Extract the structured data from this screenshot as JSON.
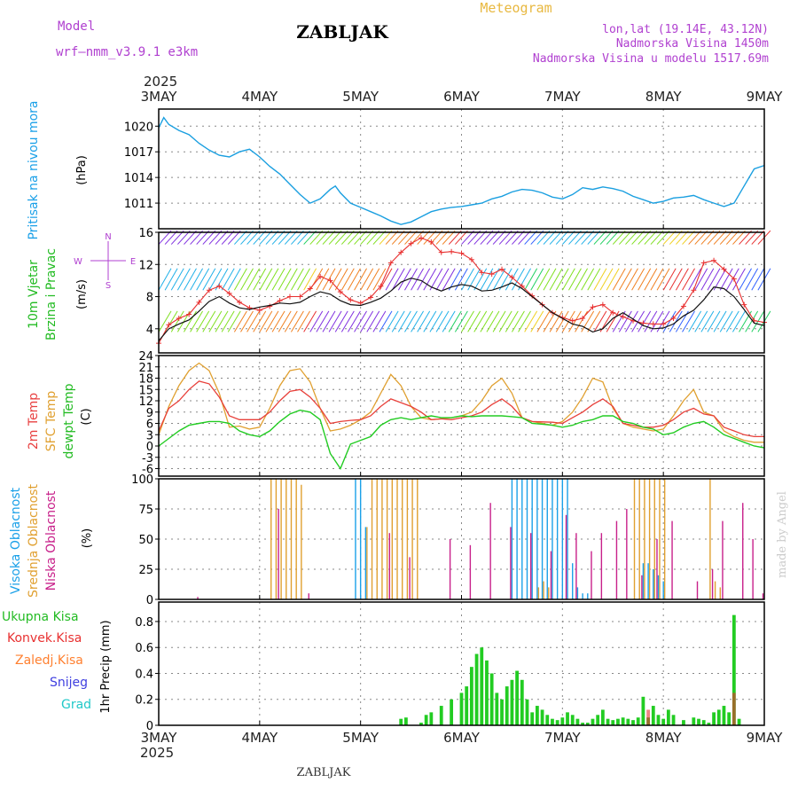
{
  "header": {
    "model_label": "Model",
    "model_name": "wrf–nmm_v3.9.1  e3km",
    "station": "ZABLJAK",
    "product": "Meteogram",
    "coords": "lon,lat (19.14E, 43.12N)",
    "elevation": "Nadmorska Visina 1450m",
    "model_elevation": "Nadmorska Visina u modelu 1517.69m"
  },
  "footer": {
    "station": "ZABLJAK",
    "signature": "made by Angel"
  },
  "time_axis": {
    "year": "2025",
    "ticks": [
      "3MAY",
      "4MAY",
      "5MAY",
      "6MAY",
      "7MAY",
      "8MAY",
      "9MAY"
    ]
  },
  "colors": {
    "pressure": "#1a9fe0",
    "wind": "#111111",
    "gust": "#e83030",
    "temp2m": "#e8403a",
    "sfc": "#e0a030",
    "dewpt": "#22cc22",
    "high_cloud": "#1aa0e8",
    "mid_cloud": "#e0a030",
    "low_cloud": "#c8208a",
    "precip_total": "#22cc22",
    "precip_conv": "#e83030",
    "precip_froz": "#ff8030",
    "snow": "#4040e0",
    "hail": "#20c8c8",
    "frame": "#000000",
    "grid": "#888888"
  },
  "chart_data": [
    {
      "type": "line",
      "id": "pressure",
      "title": "Pritisak na nivou mora",
      "ylabel": "(hPa)",
      "ylim": [
        1008,
        1022
      ],
      "yticks": [
        1011,
        1014,
        1017,
        1020
      ],
      "x_days": [
        0,
        0.05,
        0.1,
        0.2,
        0.3,
        0.4,
        0.5,
        0.6,
        0.7,
        0.8,
        0.9,
        1.0,
        1.1,
        1.2,
        1.3,
        1.4,
        1.5,
        1.6,
        1.7,
        1.75,
        1.8,
        1.9,
        2.0,
        2.1,
        2.2,
        2.3,
        2.4,
        2.5,
        2.6,
        2.7,
        2.8,
        2.9,
        3.0,
        3.1,
        3.2,
        3.3,
        3.4,
        3.5,
        3.6,
        3.7,
        3.8,
        3.9,
        4.0,
        4.1,
        4.2,
        4.3,
        4.4,
        4.5,
        4.6,
        4.7,
        4.8,
        4.9,
        5.0,
        5.1,
        5.2,
        5.3,
        5.4,
        5.5,
        5.6,
        5.7,
        5.8,
        5.9,
        6.0
      ],
      "values": [
        1019.8,
        1021.0,
        1020.2,
        1019.5,
        1019.0,
        1018.0,
        1017.2,
        1016.6,
        1016.4,
        1017.0,
        1017.3,
        1016.4,
        1015.3,
        1014.4,
        1013.2,
        1012.0,
        1011.0,
        1011.5,
        1012.6,
        1013.0,
        1012.2,
        1011.0,
        1010.5,
        1010.0,
        1009.5,
        1008.9,
        1008.5,
        1008.8,
        1009.4,
        1010.0,
        1010.3,
        1010.5,
        1010.6,
        1010.8,
        1011.0,
        1011.5,
        1011.8,
        1012.3,
        1012.6,
        1012.5,
        1012.2,
        1011.7,
        1011.5,
        1012.0,
        1012.8,
        1012.6,
        1012.9,
        1012.7,
        1012.4,
        1011.8,
        1011.4,
        1011.0,
        1011.2,
        1011.6,
        1011.7,
        1011.9,
        1011.4,
        1011.0,
        1010.6,
        1011.0,
        1013.0,
        1015.0,
        1015.4
      ]
    },
    {
      "type": "line",
      "id": "wind",
      "title_lines": [
        "10m Vjetar",
        "Brzina i Pravac"
      ],
      "ylabel": "(m/s)",
      "compass": [
        "N",
        "S",
        "E",
        "W"
      ],
      "ylim": [
        1,
        16
      ],
      "yticks": [
        4,
        8,
        12,
        16
      ],
      "x_days": [
        0,
        0.1,
        0.2,
        0.3,
        0.4,
        0.5,
        0.6,
        0.7,
        0.8,
        0.9,
        1.0,
        1.1,
        1.2,
        1.3,
        1.4,
        1.5,
        1.6,
        1.7,
        1.8,
        1.9,
        2.0,
        2.1,
        2.2,
        2.3,
        2.4,
        2.5,
        2.6,
        2.7,
        2.8,
        2.9,
        3.0,
        3.1,
        3.2,
        3.3,
        3.4,
        3.5,
        3.6,
        3.7,
        3.8,
        3.9,
        4.0,
        4.1,
        4.2,
        4.3,
        4.4,
        4.5,
        4.6,
        4.7,
        4.8,
        4.9,
        5.0,
        5.1,
        5.2,
        5.3,
        5.4,
        5.5,
        5.6,
        5.7,
        5.8,
        5.9,
        6.0
      ],
      "speed": [
        2.5,
        4.0,
        4.6,
        5.1,
        6.2,
        7.4,
        8.0,
        7.2,
        6.6,
        6.4,
        6.7,
        6.9,
        7.2,
        7.1,
        7.3,
        8.0,
        8.6,
        8.3,
        7.5,
        7.0,
        6.9,
        7.3,
        7.8,
        8.7,
        9.8,
        10.3,
        10.0,
        9.2,
        8.7,
        9.2,
        9.5,
        9.3,
        8.7,
        8.8,
        9.2,
        9.7,
        9.0,
        8.0,
        7.0,
        6.0,
        5.3,
        4.6,
        4.3,
        3.6,
        4.0,
        5.3,
        6.0,
        5.2,
        4.4,
        4.0,
        4.1,
        4.6,
        5.6,
        6.3,
        7.6,
        9.2,
        9.0,
        8.0,
        6.4,
        4.7,
        4.4
      ],
      "gust": [
        2.2,
        4.5,
        5.3,
        5.8,
        7.3,
        8.8,
        9.3,
        8.4,
        7.3,
        6.6,
        6.3,
        6.8,
        7.5,
        8.0,
        8.0,
        9.0,
        10.5,
        10.0,
        8.6,
        7.6,
        7.2,
        7.9,
        9.3,
        12.2,
        13.5,
        14.6,
        15.3,
        14.8,
        13.5,
        13.6,
        13.4,
        12.6,
        11.0,
        10.8,
        11.4,
        10.4,
        9.3,
        8.1,
        7.0,
        6.0,
        5.4,
        5.0,
        5.3,
        6.7,
        7.0,
        6.0,
        5.5,
        5.0,
        4.7,
        4.6,
        4.6,
        5.3,
        6.8,
        8.8,
        12.2,
        12.5,
        11.4,
        10.2,
        7.0,
        5.0,
        4.8
      ]
    },
    {
      "type": "line",
      "id": "temperature",
      "title_lines": [
        "2m Temp",
        "SFC Temp",
        "dewpt Temp"
      ],
      "ylabel": "(C)",
      "ylim": [
        -8,
        24
      ],
      "yticks": [
        -6,
        -3,
        0,
        3,
        6,
        9,
        12,
        15,
        18,
        21,
        24
      ],
      "x_days": [
        0,
        0.1,
        0.2,
        0.3,
        0.4,
        0.5,
        0.6,
        0.7,
        0.8,
        0.9,
        1.0,
        1.1,
        1.2,
        1.3,
        1.4,
        1.5,
        1.6,
        1.7,
        1.8,
        1.9,
        2.0,
        2.1,
        2.2,
        2.3,
        2.4,
        2.5,
        2.6,
        2.7,
        2.8,
        2.9,
        3.0,
        3.1,
        3.2,
        3.3,
        3.4,
        3.5,
        3.6,
        3.7,
        3.8,
        3.9,
        4.0,
        4.1,
        4.2,
        4.3,
        4.4,
        4.5,
        4.6,
        4.7,
        4.8,
        4.9,
        5.0,
        5.1,
        5.2,
        5.3,
        5.4,
        5.5,
        5.6,
        5.7,
        5.8,
        5.9,
        6.0
      ],
      "temp2m": [
        4.0,
        10.0,
        12.0,
        15.0,
        17.2,
        16.5,
        13.0,
        8.0,
        7.0,
        7.0,
        7.0,
        9.0,
        12.0,
        14.5,
        15.0,
        13.0,
        10.0,
        6.0,
        6.5,
        6.8,
        7.0,
        8.0,
        10.5,
        12.5,
        11.5,
        10.5,
        9.0,
        7.0,
        7.2,
        7.0,
        7.5,
        8.0,
        9.0,
        11.0,
        12.5,
        10.5,
        7.5,
        6.5,
        6.4,
        6.3,
        6.0,
        7.5,
        9.0,
        11.0,
        12.5,
        10.5,
        6.0,
        5.5,
        5.0,
        5.0,
        5.5,
        7.0,
        9.0,
        10.0,
        8.5,
        8.0,
        5.0,
        4.0,
        3.0,
        2.5,
        2.5
      ],
      "sfc": [
        3.0,
        10.5,
        16.0,
        20.0,
        22.0,
        20.0,
        14.0,
        5.0,
        5.3,
        4.5,
        5.0,
        10.0,
        16.0,
        20.0,
        20.5,
        17.0,
        10.0,
        4.0,
        4.5,
        5.5,
        7.0,
        9.0,
        14.0,
        19.0,
        16.0,
        10.5,
        7.5,
        7.0,
        7.2,
        7.5,
        8.0,
        9.0,
        12.0,
        16.0,
        18.0,
        14.0,
        7.5,
        6.5,
        6.0,
        5.5,
        6.5,
        9.0,
        13.0,
        18.0,
        17.0,
        10.0,
        6.0,
        5.0,
        4.5,
        4.0,
        4.5,
        8.0,
        12.0,
        15.0,
        9.0,
        8.0,
        4.0,
        2.5,
        1.5,
        1.0,
        1.0
      ],
      "dewpt": [
        0.0,
        2.0,
        4.0,
        5.5,
        6.0,
        6.5,
        6.5,
        6.0,
        4.0,
        3.0,
        2.5,
        4.0,
        6.5,
        8.5,
        9.5,
        9.0,
        7.0,
        -2.0,
        -6.0,
        0.5,
        1.5,
        2.5,
        5.5,
        7.0,
        7.5,
        7.0,
        7.5,
        8.0,
        7.5,
        7.5,
        8.0,
        7.8,
        8.0,
        8.0,
        8.0,
        7.8,
        7.5,
        6.0,
        5.8,
        5.5,
        5.0,
        5.5,
        6.5,
        7.0,
        8.0,
        8.0,
        6.5,
        6.0,
        5.0,
        4.5,
        3.0,
        3.5,
        5.0,
        6.0,
        6.5,
        5.0,
        3.0,
        2.0,
        1.0,
        0.0,
        -0.5
      ]
    },
    {
      "type": "bar",
      "id": "cloud",
      "title_lines": [
        "Visoka Oblacnost",
        "Srednja Oblacnost",
        "Niska Oblacnost"
      ],
      "ylabel": "(%)",
      "ylim": [
        0,
        100
      ],
      "yticks": [
        0,
        25,
        50,
        75,
        100
      ],
      "high_x": [
        1.95,
        2.0,
        2.05,
        3.5,
        3.55,
        3.6,
        3.65,
        3.7,
        3.75,
        3.8,
        3.85,
        3.9,
        3.95,
        4.0,
        4.05,
        4.1,
        4.15,
        4.2,
        4.25,
        4.8,
        4.85,
        4.9,
        4.95,
        5.0
      ],
      "high_values": [
        100,
        100,
        60,
        100,
        100,
        100,
        100,
        100,
        100,
        100,
        100,
        100,
        100,
        100,
        100,
        30,
        10,
        5,
        5,
        30,
        30,
        25,
        20,
        15
      ],
      "mid_x": [
        1.1,
        1.15,
        1.2,
        1.25,
        1.3,
        1.35,
        1.4,
        2.05,
        2.1,
        2.15,
        2.2,
        2.25,
        2.3,
        2.35,
        2.4,
        2.45,
        2.5,
        2.55,
        3.75,
        3.8,
        3.85,
        4.7,
        4.75,
        4.8,
        4.85,
        4.9,
        4.95,
        5.0,
        5.45,
        5.5,
        5.55
      ],
      "mid_values": [
        100,
        100,
        100,
        100,
        100,
        100,
        95,
        60,
        100,
        100,
        100,
        100,
        100,
        100,
        100,
        100,
        100,
        100,
        10,
        15,
        10,
        100,
        100,
        100,
        100,
        100,
        100,
        100,
        100,
        15,
        10
      ],
      "low_x": [
        0.4,
        1.2,
        1.5,
        2.3,
        2.5,
        2.9,
        3.1,
        3.3,
        3.5,
        3.7,
        3.9,
        4.05,
        4.15,
        4.3,
        4.4,
        4.55,
        4.65,
        4.8,
        4.95,
        5.1,
        5.35,
        5.5,
        5.6,
        5.8,
        5.9,
        6.0
      ],
      "low_values": [
        2,
        75,
        5,
        55,
        35,
        50,
        45,
        80,
        60,
        55,
        40,
        70,
        55,
        40,
        55,
        65,
        75,
        20,
        50,
        65,
        15,
        25,
        65,
        80,
        50,
        5
      ]
    },
    {
      "type": "bar",
      "id": "precip",
      "title_lines": [
        "Ukupna Kisa",
        "Konvek.Kisa",
        "Zaledj.Kisa",
        "Snijeg",
        "Grad"
      ],
      "ylabel": "1hr Precip (mm)",
      "ylim": [
        0,
        0.95
      ],
      "yticks": [
        0,
        0.2,
        0.4,
        0.6,
        0.8
      ],
      "x_days": [
        2.4,
        2.45,
        2.6,
        2.65,
        2.7,
        2.8,
        2.9,
        3.0,
        3.05,
        3.1,
        3.15,
        3.2,
        3.25,
        3.3,
        3.35,
        3.4,
        3.45,
        3.5,
        3.55,
        3.6,
        3.65,
        3.7,
        3.75,
        3.8,
        3.85,
        3.9,
        3.95,
        4.0,
        4.05,
        4.1,
        4.15,
        4.2,
        4.25,
        4.3,
        4.35,
        4.4,
        4.45,
        4.5,
        4.55,
        4.6,
        4.65,
        4.7,
        4.75,
        4.8,
        4.85,
        4.9,
        4.95,
        5.0,
        5.05,
        5.1,
        5.2,
        5.3,
        5.35,
        5.4,
        5.45,
        5.5,
        5.55,
        5.6,
        5.65,
        5.7,
        5.75
      ],
      "values": [
        0.05,
        0.06,
        0.02,
        0.08,
        0.1,
        0.15,
        0.2,
        0.25,
        0.3,
        0.45,
        0.55,
        0.6,
        0.5,
        0.4,
        0.25,
        0.2,
        0.3,
        0.35,
        0.42,
        0.35,
        0.2,
        0.1,
        0.15,
        0.12,
        0.08,
        0.05,
        0.04,
        0.06,
        0.1,
        0.08,
        0.05,
        0.02,
        0.02,
        0.05,
        0.08,
        0.12,
        0.05,
        0.04,
        0.05,
        0.06,
        0.05,
        0.04,
        0.06,
        0.22,
        0.06,
        0.15,
        0.08,
        0.05,
        0.12,
        0.08,
        0.04,
        0.06,
        0.05,
        0.04,
        0.02,
        0.1,
        0.12,
        0.15,
        0.1,
        0.85,
        0.05
      ],
      "conv_x": [
        4.85,
        5.7
      ],
      "conv_values": [
        0.12,
        0.25
      ]
    }
  ]
}
